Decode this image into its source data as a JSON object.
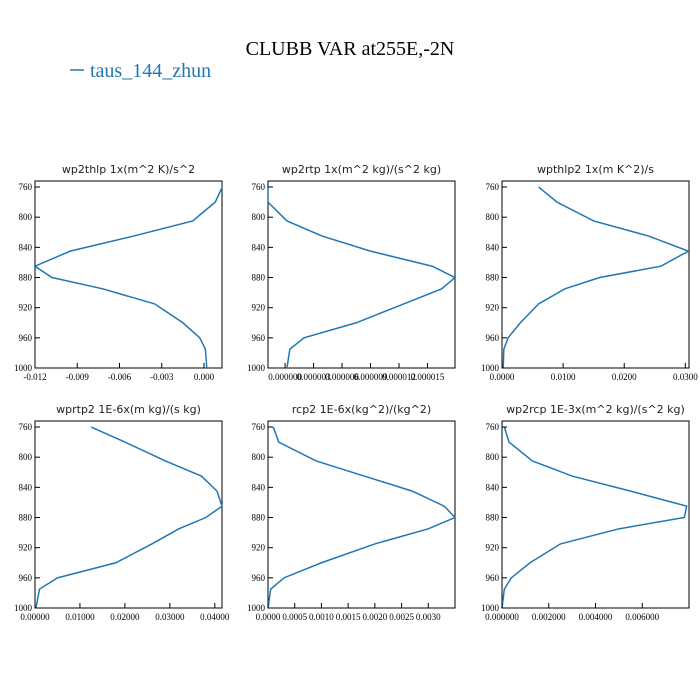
{
  "title": "CLUBB VAR at255E,-2N",
  "legend": {
    "name": "taus_144_zhun",
    "color": "#1f77b4"
  },
  "chart_data": [
    {
      "type": "line",
      "title": "wp2thlp  1x(m^2 K)/s^2",
      "y": [
        760,
        780,
        805,
        825,
        845,
        865,
        880,
        895,
        915,
        940,
        960,
        975,
        1000
      ],
      "series": [
        {
          "color": "#1f77b4",
          "values": [
            0.0013,
            0.0008,
            -0.0008,
            -0.005,
            -0.0095,
            -0.012,
            -0.0108,
            -0.0072,
            -0.0035,
            -0.0015,
            -0.0003,
            0.0001,
            0.0002
          ]
        }
      ],
      "xlim": [
        -0.012,
        0.00128
      ],
      "xticks": [
        -0.012,
        -0.009,
        -0.006,
        -0.003,
        {
          "value": 0,
          "label": "0.000"
        }
      ],
      "ylim": [
        752,
        1000
      ],
      "yticks": [
        760,
        800,
        840,
        880,
        920,
        960,
        1000
      ],
      "invert_y": true
    },
    {
      "type": "line",
      "title": "wp2rtp  1x(m^2 kg)/(s^2 kg)",
      "y": [
        760,
        780,
        805,
        825,
        845,
        865,
        880,
        895,
        915,
        940,
        960,
        975,
        1000
      ],
      "series": [
        {
          "color": "#1f77b4",
          "values": [
            -1.8e-06,
            -1.8e-06,
            2e-07,
            3.9e-06,
            9e-06,
            1.55e-05,
            1.79e-05,
            1.65e-05,
            1.25e-05,
            7.5e-06,
            2e-06,
            5e-07,
            2e-07
          ]
        }
      ],
      "xlim": [
        -1.8e-06,
        1.79e-05
      ],
      "xticks": [
        {
          "value": 0,
          "label": "0.000000"
        },
        3e-06,
        6e-06,
        9e-06,
        1.2e-05,
        1.5e-05
      ],
      "ylim": [
        752,
        1000
      ],
      "yticks": [
        760,
        800,
        840,
        880,
        920,
        960,
        1000
      ],
      "invert_y": true
    },
    {
      "type": "line",
      "title": "wpthlp2  1x(m K^2)/s",
      "y": [
        760,
        780,
        805,
        825,
        845,
        865,
        880,
        895,
        915,
        940,
        960,
        975,
        1000
      ],
      "series": [
        {
          "color": "#1f77b4",
          "values": [
            0.006,
            0.009,
            0.015,
            0.024,
            0.0305,
            0.026,
            0.016,
            0.0103,
            0.006,
            0.003,
            0.001,
            0.0003,
            0.0002
          ]
        }
      ],
      "xlim": [
        0,
        0.0306
      ],
      "xticks": [
        {
          "value": 0,
          "label": "0.0000"
        },
        {
          "value": 0.01,
          "label": "0.0100"
        },
        {
          "value": 0.02,
          "label": "0.0200"
        },
        {
          "value": 0.03,
          "label": "0.0300"
        }
      ],
      "ylim": [
        752,
        1000
      ],
      "yticks": [
        760,
        800,
        840,
        880,
        920,
        960,
        1000
      ],
      "invert_y": true
    },
    {
      "type": "line",
      "title": "wprtp2  1E-6x(m kg)/(s kg)",
      "y": [
        760,
        780,
        805,
        825,
        845,
        865,
        880,
        895,
        915,
        940,
        960,
        975,
        1000
      ],
      "series": [
        {
          "color": "#1f77b4",
          "values": [
            0.0125,
            0.02,
            0.029,
            0.037,
            0.0405,
            0.0416,
            0.038,
            0.032,
            0.026,
            0.018,
            0.005,
            0.001,
            0.0002
          ]
        }
      ],
      "xlim": [
        0,
        0.0416
      ],
      "xticks": [
        {
          "value": 0,
          "label": "0.00000"
        },
        {
          "value": 0.01,
          "label": "0.01000"
        },
        {
          "value": 0.02,
          "label": "0.02000"
        },
        {
          "value": 0.03,
          "label": "0.03000"
        },
        {
          "value": 0.04,
          "label": "0.04000"
        }
      ],
      "ylim": [
        752,
        1000
      ],
      "yticks": [
        760,
        800,
        840,
        880,
        920,
        960,
        1000
      ],
      "invert_y": true
    },
    {
      "type": "line",
      "title": "rcp2  1E-6x(kg^2)/(kg^2)",
      "y": [
        760,
        780,
        805,
        825,
        845,
        865,
        880,
        895,
        915,
        940,
        960,
        975,
        1000
      ],
      "series": [
        {
          "color": "#1f77b4",
          "values": [
            0.0001,
            0.0002,
            0.0009,
            0.0018,
            0.0027,
            0.0033,
            0.0035,
            0.003,
            0.002,
            0.001,
            0.0003,
            5e-05,
            0
          ]
        }
      ],
      "xlim": [
        0,
        0.0035
      ],
      "xticks": [
        {
          "value": 0,
          "label": "0.0000"
        },
        0.0005,
        {
          "value": 0.001,
          "label": "0.0010"
        },
        0.0015,
        {
          "value": 0.002,
          "label": "0.0020"
        },
        0.0025,
        {
          "value": 0.003,
          "label": "0.0030"
        }
      ],
      "ylim": [
        752,
        1000
      ],
      "yticks": [
        760,
        800,
        840,
        880,
        920,
        960,
        1000
      ],
      "invert_y": true
    },
    {
      "type": "line",
      "title": "wp2rcp  1E-3x(m^2 kg)/(s^2 kg)",
      "y": [
        760,
        780,
        805,
        825,
        845,
        865,
        880,
        895,
        915,
        940,
        960,
        975,
        1000
      ],
      "series": [
        {
          "color": "#1f77b4",
          "values": [
            0.0001,
            0.0003,
            0.0013,
            0.003,
            0.0055,
            0.0079,
            0.0078,
            0.005,
            0.0025,
            0.0012,
            0.0004,
            0.0001,
            0
          ]
        }
      ],
      "xlim": [
        0,
        0.008
      ],
      "xticks": [
        {
          "value": 0,
          "label": "0.000000"
        },
        {
          "value": 0.002,
          "label": "0.002000"
        },
        {
          "value": 0.004,
          "label": "0.004000"
        },
        {
          "value": 0.006,
          "label": "0.006000"
        }
      ],
      "ylim": [
        752,
        1000
      ],
      "yticks": [
        760,
        800,
        840,
        880,
        920,
        960,
        1000
      ],
      "invert_y": true
    }
  ]
}
